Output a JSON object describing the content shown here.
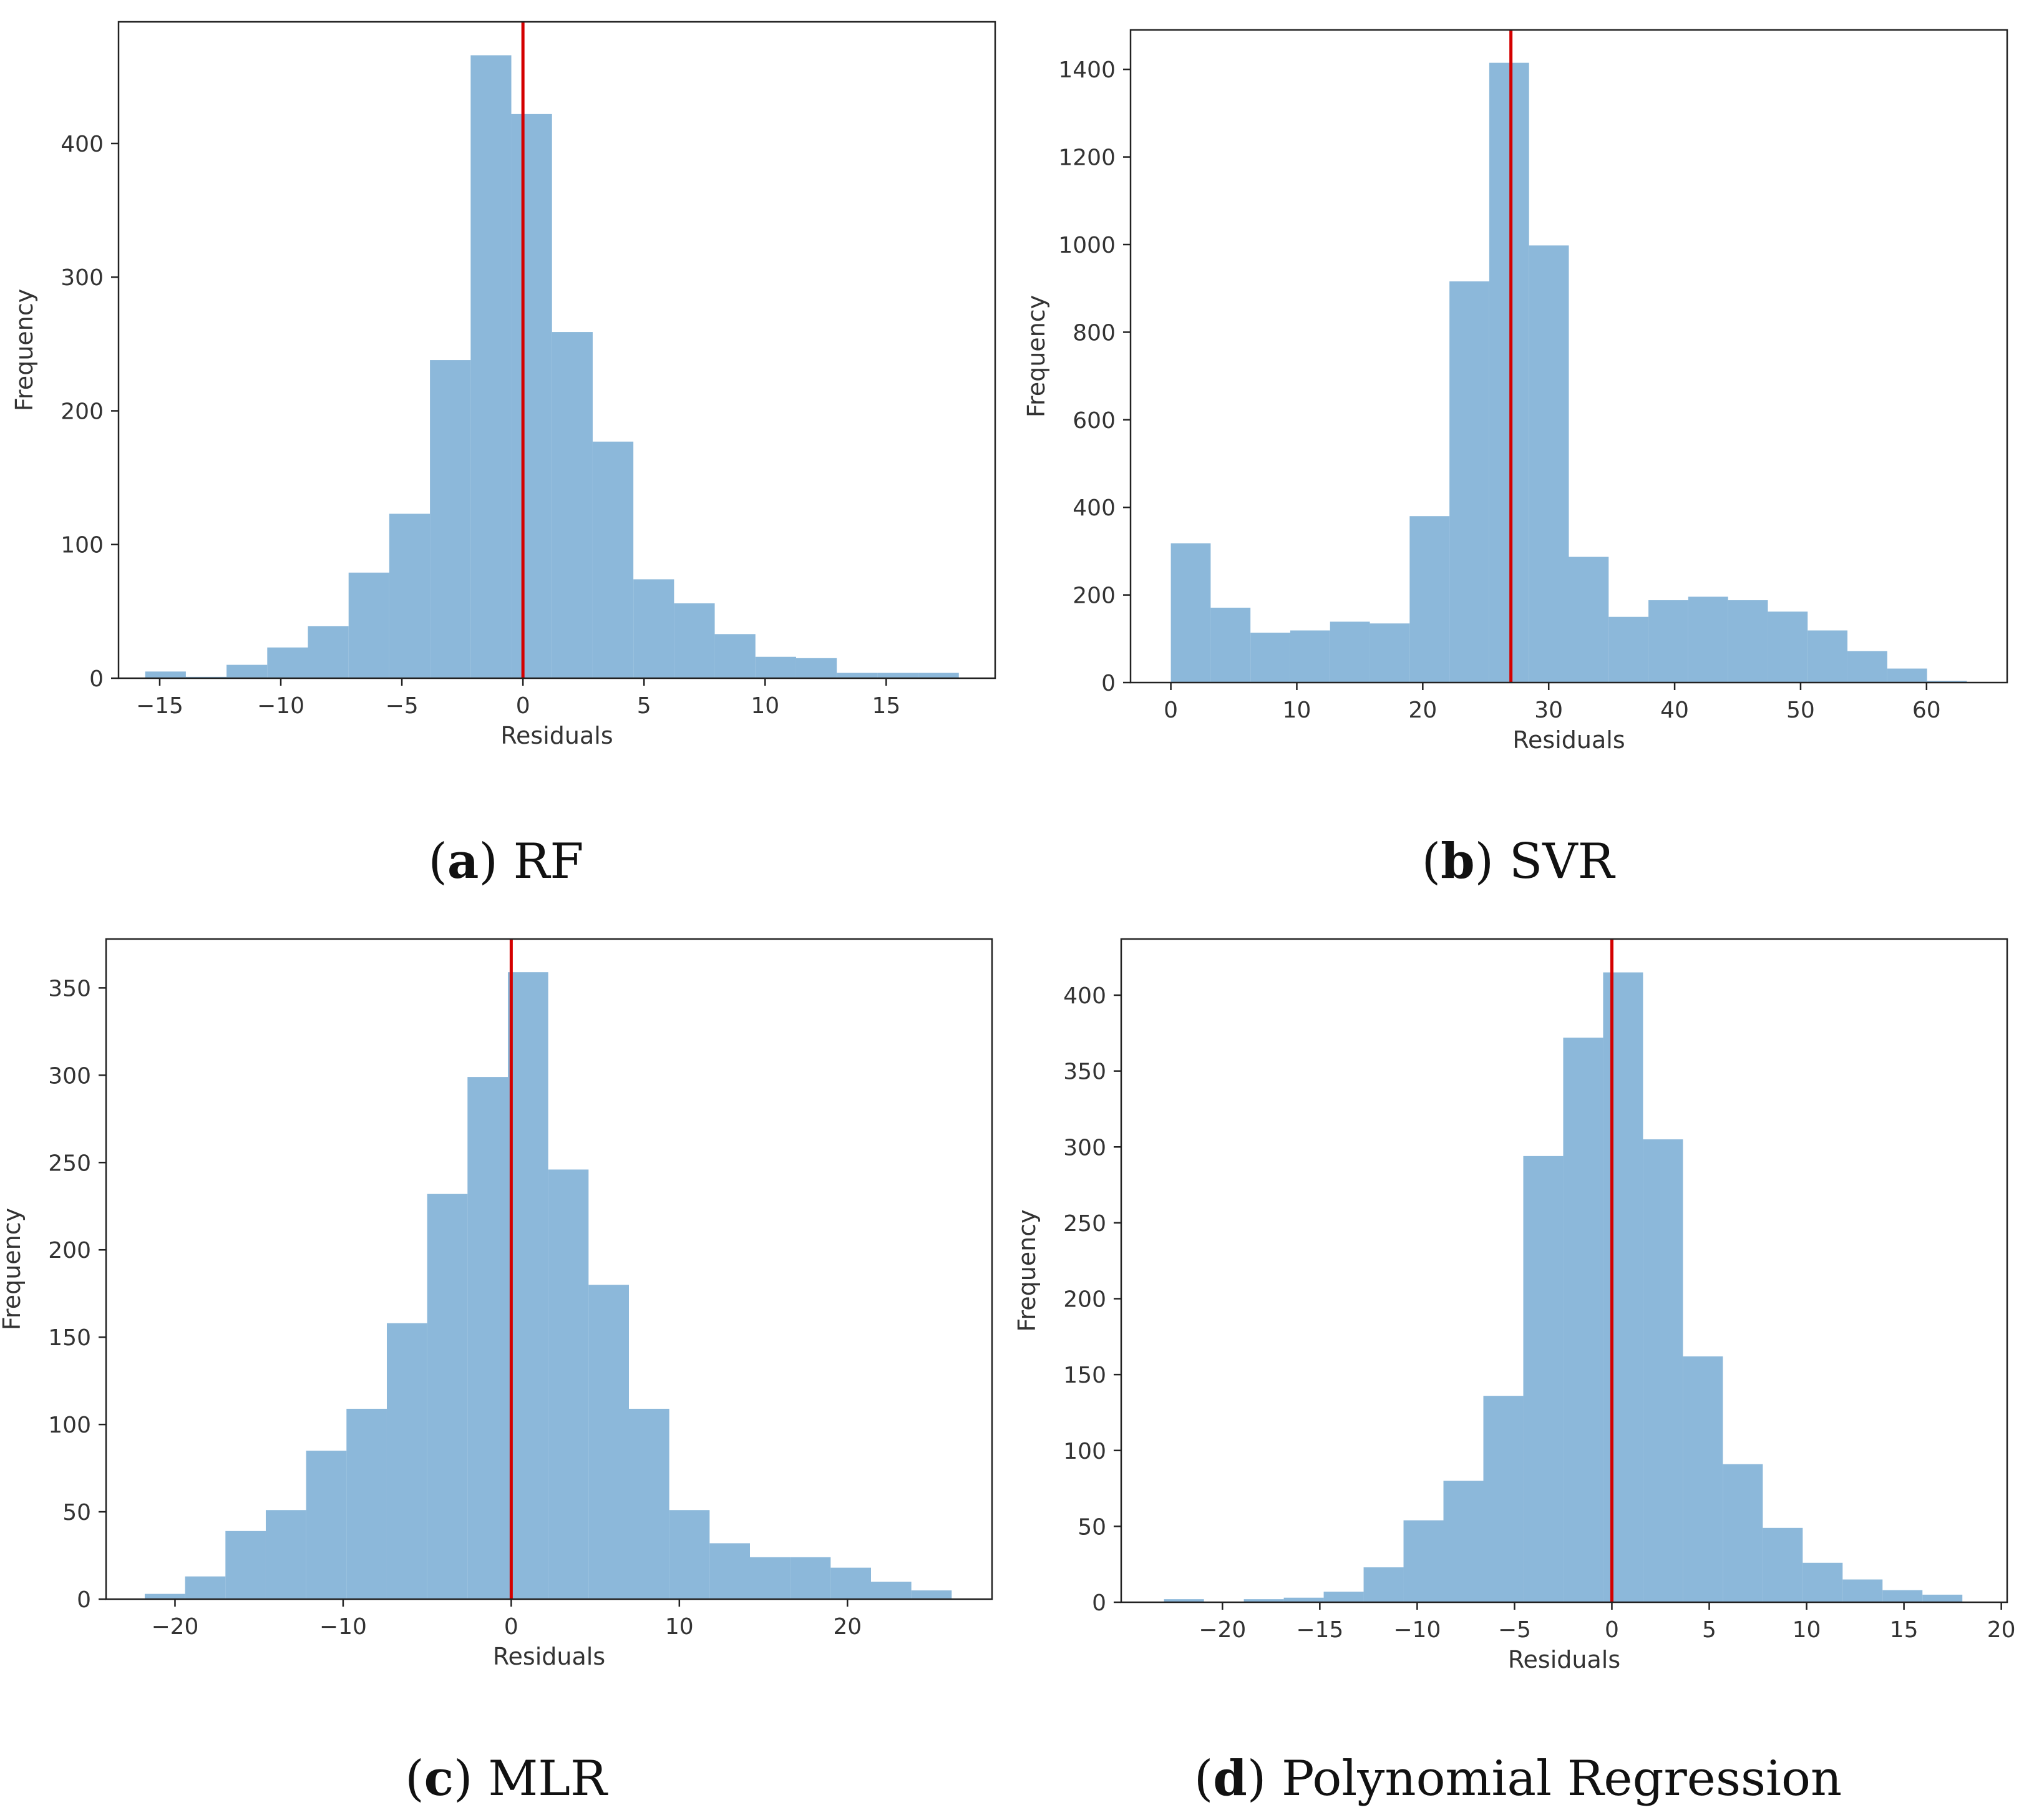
{
  "chart_data": [
    {
      "type": "bar",
      "id": "a",
      "caption_letter": "a",
      "caption_name": "RF",
      "xlabel": "Residuals",
      "ylabel": "Frequency",
      "xlim": [
        -16.7,
        19.5
      ],
      "ylim": [
        0,
        491
      ],
      "xticks": [
        -15,
        -10,
        -5,
        0,
        5,
        10,
        15
      ],
      "yticks": [
        0,
        100,
        200,
        300,
        400
      ],
      "bin_start": -15.6,
      "bin_width": 1.68,
      "values": [
        5,
        1,
        10,
        23,
        39,
        79,
        123,
        238,
        466,
        422,
        259,
        177,
        74,
        56,
        33,
        16,
        15,
        4,
        4,
        4
      ],
      "vline": 0,
      "bar_color": "#8cb8da",
      "line_color": "#d40000"
    },
    {
      "type": "bar",
      "id": "b",
      "caption_letter": "b",
      "caption_name": "SVR",
      "xlabel": "Residuals",
      "ylabel": "Frequency",
      "xlim": [
        -3.2,
        66.4
      ],
      "ylim": [
        0,
        1490
      ],
      "xticks": [
        0,
        10,
        20,
        30,
        40,
        50,
        60
      ],
      "yticks": [
        0,
        200,
        400,
        600,
        800,
        1000,
        1200,
        1400
      ],
      "bin_start": 0,
      "bin_width": 3.16,
      "values": [
        318,
        171,
        114,
        119,
        139,
        135,
        380,
        916,
        1415,
        998,
        287,
        150,
        188,
        196,
        188,
        162,
        119,
        72,
        32,
        4
      ],
      "vline": 27,
      "bar_color": "#8cb8da",
      "line_color": "#d40000"
    },
    {
      "type": "bar",
      "id": "c",
      "caption_letter": "c",
      "caption_name": "MLR",
      "xlabel": "Residuals",
      "ylabel": "Frequency",
      "xlim": [
        -24.1,
        28.6
      ],
      "ylim": [
        0,
        378
      ],
      "xticks": [
        -20,
        -10,
        0,
        10,
        20
      ],
      "yticks": [
        0,
        50,
        100,
        150,
        200,
        250,
        300,
        350
      ],
      "bin_start": -21.8,
      "bin_width": 2.4,
      "values": [
        3,
        13,
        39,
        51,
        85,
        109,
        158,
        232,
        299,
        359,
        246,
        180,
        109,
        51,
        32,
        24,
        24,
        18,
        10,
        5
      ],
      "vline": 0,
      "bar_color": "#8cb8da",
      "line_color": "#d40000"
    },
    {
      "type": "bar",
      "id": "d",
      "caption_letter": "d",
      "caption_name": "Polynomial Regression",
      "xlabel": "Residuals",
      "ylabel": "Frequency",
      "xlim": [
        -25.2,
        20.3
      ],
      "ylim": [
        0,
        437
      ],
      "xticks": [
        -20,
        -15,
        -10,
        -5,
        0,
        5,
        10,
        15,
        20
      ],
      "yticks": [
        0,
        50,
        100,
        150,
        200,
        250,
        300,
        350,
        400
      ],
      "bin_start": -23.0,
      "bin_width": 2.05,
      "values": [
        2,
        0,
        2,
        3,
        7,
        23,
        54,
        80,
        136,
        294,
        372,
        415,
        305,
        162,
        91,
        49,
        26,
        15,
        8,
        5
      ],
      "vline": 0,
      "bar_color": "#8cb8da",
      "line_color": "#d40000"
    }
  ]
}
